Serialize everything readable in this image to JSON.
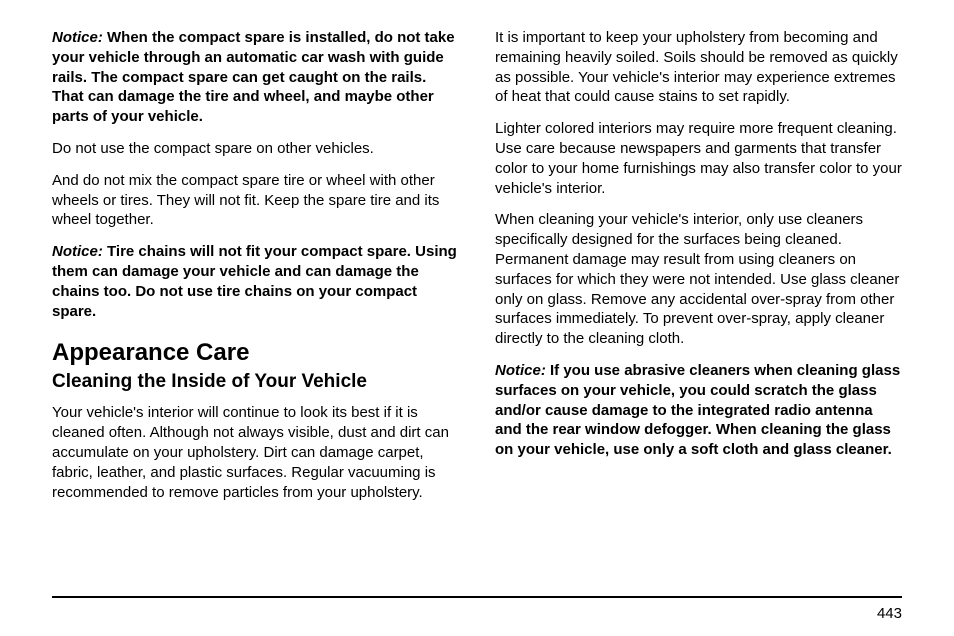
{
  "left": {
    "notice1_label": "Notice:",
    "notice1_body": "   When the compact spare is installed, do not take your vehicle through an automatic car wash with guide rails. The compact spare can get caught on the rails. That can damage the tire and wheel, and maybe other parts of your vehicle.",
    "p1": "Do not use the compact spare on other vehicles.",
    "p2": "And do not mix the compact spare tire or wheel with other wheels or tires. They will not fit. Keep the spare tire and its wheel together.",
    "notice2_label": "Notice:",
    "notice2_body": "   Tire chains will not fit your compact spare. Using them can damage your vehicle and can damage the chains too. Do not use tire chains on your compact spare.",
    "h1": "Appearance Care",
    "h2": "Cleaning the Inside of Your Vehicle",
    "p3": "Your vehicle's interior will continue to look its best if it is cleaned often. Although not always visible, dust and dirt can accumulate on your upholstery. Dirt can damage carpet, fabric, leather, and plastic surfaces. Regular vacuuming is recommended to remove particles from your upholstery."
  },
  "right": {
    "p1": "It is important to keep your upholstery from becoming and remaining heavily soiled. Soils should be removed as quickly as possible. Your vehicle's interior may experience extremes of heat that could cause stains to set rapidly.",
    "p2": "Lighter colored interiors may require more frequent cleaning. Use care because newspapers and garments that transfer color to your home furnishings may also transfer color to your vehicle's interior.",
    "p3": "When cleaning your vehicle's interior, only use cleaners specifically designed for the surfaces being cleaned. Permanent damage may result from using cleaners on surfaces for which they were not intended. Use glass cleaner only on glass. Remove any accidental over-spray from other surfaces immediately. To prevent over-spray, apply cleaner directly to the cleaning cloth.",
    "notice_label": "Notice:",
    "notice_body": "   If you use abrasive cleaners when cleaning glass surfaces on your vehicle, you could scratch the glass and/or cause damage to the integrated radio antenna and the rear window defogger. When cleaning the glass on your vehicle, use only a soft cloth and glass cleaner."
  },
  "page_number": "443"
}
